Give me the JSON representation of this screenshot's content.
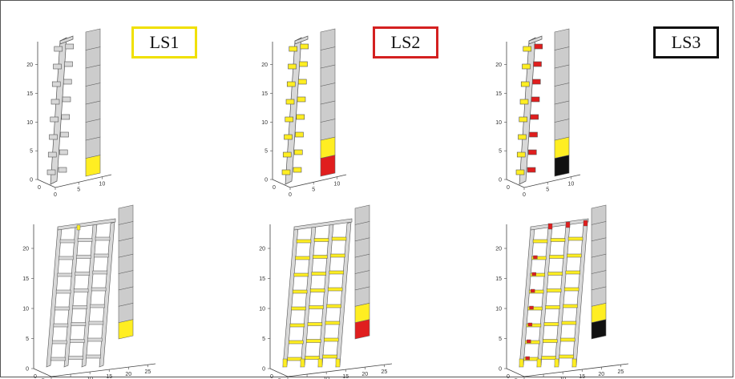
{
  "labels": {
    "ls1": "LS1",
    "ls2": "LS2",
    "ls3": "LS3"
  },
  "colors": {
    "frame_border": "#555555",
    "ls1_border": "#f0e000",
    "ls2_border": "#d42020",
    "ls3_border": "#111111",
    "member_fill": "#d8d8d8",
    "member_stroke": "#555555",
    "yellow": "#ffee22",
    "red": "#e01e1e",
    "black": "#111111",
    "strip_fill": "#cccccc"
  },
  "panels": [
    {
      "name": "ls1-single-column",
      "type": "column",
      "strip": [
        "yellow",
        "gray",
        "gray",
        "gray",
        "gray",
        "gray",
        "gray",
        "gray"
      ],
      "y_ticks": [
        "0",
        "5",
        "10",
        "15",
        "20"
      ],
      "x_ticks": [
        "0",
        "5",
        "10"
      ],
      "x2_ticks": [
        "0"
      ]
    },
    {
      "name": "ls2-single-column",
      "type": "column",
      "strip": [
        "red",
        "yellow",
        "gray",
        "gray",
        "gray",
        "gray",
        "gray",
        "gray"
      ],
      "y_ticks": [
        "0",
        "5",
        "10",
        "15",
        "20"
      ],
      "x_ticks": [
        "0",
        "5",
        "10"
      ],
      "x2_ticks": [
        "0"
      ]
    },
    {
      "name": "ls3-single-column",
      "type": "column",
      "strip": [
        "black",
        "yellow",
        "gray",
        "gray",
        "gray",
        "gray",
        "gray",
        "gray"
      ],
      "y_ticks": [
        "0",
        "5",
        "10",
        "15",
        "20"
      ],
      "x_ticks": [
        "0",
        "5",
        "10"
      ],
      "x2_ticks": [
        "0"
      ]
    },
    {
      "name": "ls1-frame",
      "type": "frame",
      "strip": [
        "yellow",
        "gray",
        "gray",
        "gray",
        "gray",
        "gray",
        "gray",
        "gray"
      ],
      "y_ticks": [
        "0",
        "5",
        "10",
        "15",
        "20"
      ],
      "x_ticks": [
        "0",
        "5",
        "10",
        "15",
        "20",
        "25"
      ],
      "x2_ticks": [
        "0",
        "5"
      ]
    },
    {
      "name": "ls2-frame",
      "type": "frame",
      "strip": [
        "red",
        "yellow",
        "gray",
        "gray",
        "gray",
        "gray",
        "gray",
        "gray"
      ],
      "y_ticks": [
        "0",
        "5",
        "10",
        "15",
        "20"
      ],
      "x_ticks": [
        "0",
        "5",
        "10",
        "15",
        "20",
        "25"
      ],
      "x2_ticks": [
        "0",
        "5"
      ]
    },
    {
      "name": "ls3-frame",
      "type": "frame",
      "strip": [
        "black",
        "yellow",
        "gray",
        "gray",
        "gray",
        "gray",
        "gray",
        "gray"
      ],
      "y_ticks": [
        "0",
        "5",
        "10",
        "15",
        "20"
      ],
      "x_ticks": [
        "0",
        "5",
        "10",
        "15",
        "20",
        "25"
      ],
      "x2_ticks": [
        "0",
        "5"
      ]
    }
  ]
}
